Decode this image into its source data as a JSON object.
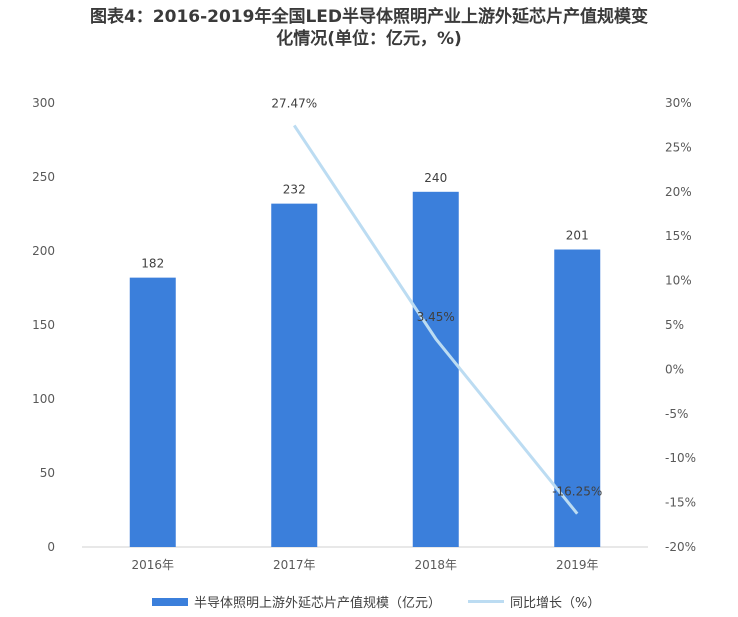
{
  "title": {
    "line1": "图表4：2016-2019年全国LED半导体照明产业上游外延芯片产值规模变",
    "line2": "化情况(单位：亿元，%)"
  },
  "chart_data": {
    "type": "bar",
    "categories": [
      "2016年",
      "2017年",
      "2018年",
      "2019年"
    ],
    "series": [
      {
        "name": "半导体照明上游外延芯片产值规模（亿元）",
        "type": "bar",
        "axis": "left",
        "values": [
          182,
          232,
          240,
          201
        ],
        "labels": [
          "182",
          "232",
          "240",
          "201"
        ]
      },
      {
        "name": "同比增长（%）",
        "type": "line",
        "axis": "right",
        "values": [
          null,
          27.47,
          3.45,
          -16.25
        ],
        "labels": [
          "",
          "27.47%",
          "3.45%",
          "-16.25%"
        ]
      }
    ],
    "y_left": {
      "range": [
        0,
        300
      ],
      "ticks": [
        "300",
        "250",
        "200",
        "150",
        "100",
        "50",
        "0"
      ]
    },
    "y_right": {
      "range": [
        -20,
        30
      ],
      "ticks": [
        "30%",
        "25%",
        "20%",
        "15%",
        "10%",
        "5%",
        "0%",
        "-5%",
        "-10%",
        "-15%",
        "-20%"
      ]
    },
    "grid": false,
    "legend_position": "bottom",
    "colors": {
      "bar": "#3b7fdb",
      "line": "#bcdcf2"
    }
  }
}
